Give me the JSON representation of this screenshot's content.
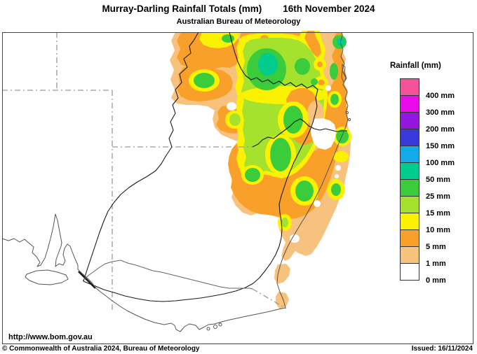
{
  "header": {
    "title": "Murray-Darling Rainfall Totals (mm)",
    "date": "16th November 2024",
    "subtitle": "Australian Bureau of Meteorology"
  },
  "legend": {
    "title": "Rainfall (mm)",
    "entries": [
      {
        "label": "400 mm",
        "color": "#F4539A"
      },
      {
        "label": "300 mm",
        "color": "#EB0AEB"
      },
      {
        "label": "200 mm",
        "color": "#9414E0"
      },
      {
        "label": "150 mm",
        "color": "#3A3ADC"
      },
      {
        "label": "100 mm",
        "color": "#12AAE8"
      },
      {
        "label": "50 mm",
        "color": "#00CC8E"
      },
      {
        "label": "25 mm",
        "color": "#3BCC3B"
      },
      {
        "label": "15 mm",
        "color": "#A5E22E"
      },
      {
        "label": "10 mm",
        "color": "#FAF202"
      },
      {
        "label": "5 mm",
        "color": "#F9A02B"
      },
      {
        "label": "1 mm",
        "color": "#F7C27E"
      },
      {
        "label": "0 mm",
        "color": "#FFFFFF"
      }
    ]
  },
  "footer": {
    "url": "http://www.bom.gov.au",
    "copyright": "© Commonwealth of Australia 2024, Bureau of Meteorology",
    "issued": "Issued: 16/11/2024"
  },
  "palette": {
    "rain0": "#FFFFFF",
    "rain1": "#F7C27E",
    "rain5": "#F9A02B",
    "rain10": "#FAF202",
    "rain15": "#A5E22E",
    "rain25": "#3BCC3B",
    "rain50": "#00CC8E",
    "rain100": "#12AAE8",
    "rain150": "#3A3ADC",
    "rain200": "#9414E0",
    "rain300": "#EB0AEB",
    "rain400": "#F4539A",
    "border_dash": "#999999",
    "coastline": "#555555",
    "basin": "#1a1a1a",
    "river": "#666666",
    "frame": "#444444"
  }
}
